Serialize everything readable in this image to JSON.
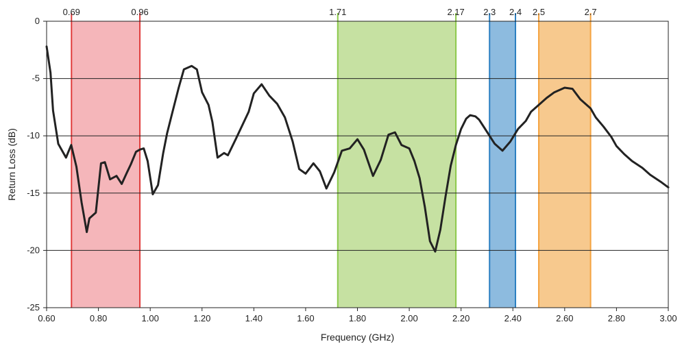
{
  "chart_data": {
    "type": "line",
    "xlabel": "Frequency (GHz)",
    "ylabel": "Return Loss (dB)",
    "xlim": [
      0.6,
      3.0
    ],
    "ylim": [
      -25,
      0
    ],
    "x_ticks": [
      "0.60",
      "0.80",
      "1.00",
      "1.20",
      "1.40",
      "1.60",
      "1.80",
      "2.00",
      "2.20",
      "2.40",
      "2.60",
      "2.80",
      "3.00"
    ],
    "y_ticks": [
      "0",
      "-5",
      "-10",
      "-15",
      "-20",
      "-25"
    ],
    "grid": "horizontal",
    "bands": [
      {
        "label_left": "0.69",
        "label_right": "0.96",
        "x0": 0.696,
        "x1": 0.96,
        "edge_color": "#e03c3c",
        "fill_color": "#f5b6ba"
      },
      {
        "label_left": "1.71",
        "label_right": "2.17",
        "x0": 1.724,
        "x1": 2.18,
        "edge_color": "#8cc84b",
        "fill_color": "#c6e1a2"
      },
      {
        "label_left": "2.3",
        "label_right": "2.4",
        "x0": 2.31,
        "x1": 2.41,
        "edge_color": "#2a7fc1",
        "fill_color": "#8dbbdf"
      },
      {
        "label_left": "2.5",
        "label_right": "2.7",
        "x0": 2.5,
        "x1": 2.7,
        "edge_color": "#f5a340",
        "fill_color": "#f7c98e"
      }
    ],
    "series": [
      {
        "color": "#222222",
        "x": [
          0.6,
          0.615,
          0.625,
          0.645,
          0.675,
          0.695,
          0.715,
          0.735,
          0.755,
          0.765,
          0.79,
          0.81,
          0.825,
          0.845,
          0.87,
          0.89,
          0.91,
          0.925,
          0.945,
          0.96,
          0.975,
          0.99,
          1.01,
          1.03,
          1.05,
          1.065,
          1.085,
          1.11,
          1.13,
          1.16,
          1.18,
          1.2,
          1.225,
          1.24,
          1.26,
          1.285,
          1.3,
          1.33,
          1.38,
          1.4,
          1.43,
          1.46,
          1.49,
          1.52,
          1.55,
          1.575,
          1.6,
          1.63,
          1.655,
          1.68,
          1.71,
          1.74,
          1.77,
          1.8,
          1.825,
          1.86,
          1.89,
          1.92,
          1.945,
          1.97,
          2.0,
          2.02,
          2.04,
          2.06,
          2.08,
          2.1,
          2.12,
          2.14,
          2.16,
          2.18,
          2.2,
          2.22,
          2.235,
          2.255,
          2.27,
          2.29,
          2.31,
          2.33,
          2.36,
          2.39,
          2.42,
          2.45,
          2.47,
          2.5,
          2.53,
          2.56,
          2.6,
          2.63,
          2.66,
          2.7,
          2.72,
          2.75,
          2.78,
          2.8,
          2.83,
          2.86,
          2.9,
          2.93,
          2.97,
          3.0
        ],
        "y": [
          -2.2,
          -4.5,
          -7.8,
          -10.7,
          -11.9,
          -10.8,
          -12.7,
          -15.8,
          -18.4,
          -17.2,
          -16.7,
          -12.4,
          -12.3,
          -13.8,
          -13.5,
          -14.2,
          -13.2,
          -12.5,
          -11.4,
          -11.2,
          -11.1,
          -12.2,
          -15.1,
          -14.3,
          -11.5,
          -9.8,
          -8.0,
          -5.8,
          -4.2,
          -3.9,
          -4.2,
          -6.2,
          -7.3,
          -8.8,
          -11.9,
          -11.5,
          -11.7,
          -10.3,
          -7.9,
          -6.3,
          -5.5,
          -6.5,
          -7.2,
          -8.4,
          -10.5,
          -12.9,
          -13.3,
          -12.4,
          -13.1,
          -14.6,
          -13.2,
          -11.3,
          -11.1,
          -10.3,
          -11.2,
          -13.5,
          -12.1,
          -9.9,
          -9.7,
          -10.8,
          -11.1,
          -12.2,
          -13.7,
          -16.2,
          -19.2,
          -20.1,
          -18.2,
          -15.3,
          -12.6,
          -10.8,
          -9.4,
          -8.5,
          -8.2,
          -8.3,
          -8.6,
          -9.3,
          -10.0,
          -10.7,
          -11.3,
          -10.5,
          -9.4,
          -8.7,
          -7.9,
          -7.3,
          -6.7,
          -6.2,
          -5.8,
          -5.9,
          -6.8,
          -7.6,
          -8.4,
          -9.2,
          -10.1,
          -10.9,
          -11.6,
          -12.2,
          -12.8,
          -13.4,
          -14.0,
          -14.5
        ]
      }
    ]
  }
}
